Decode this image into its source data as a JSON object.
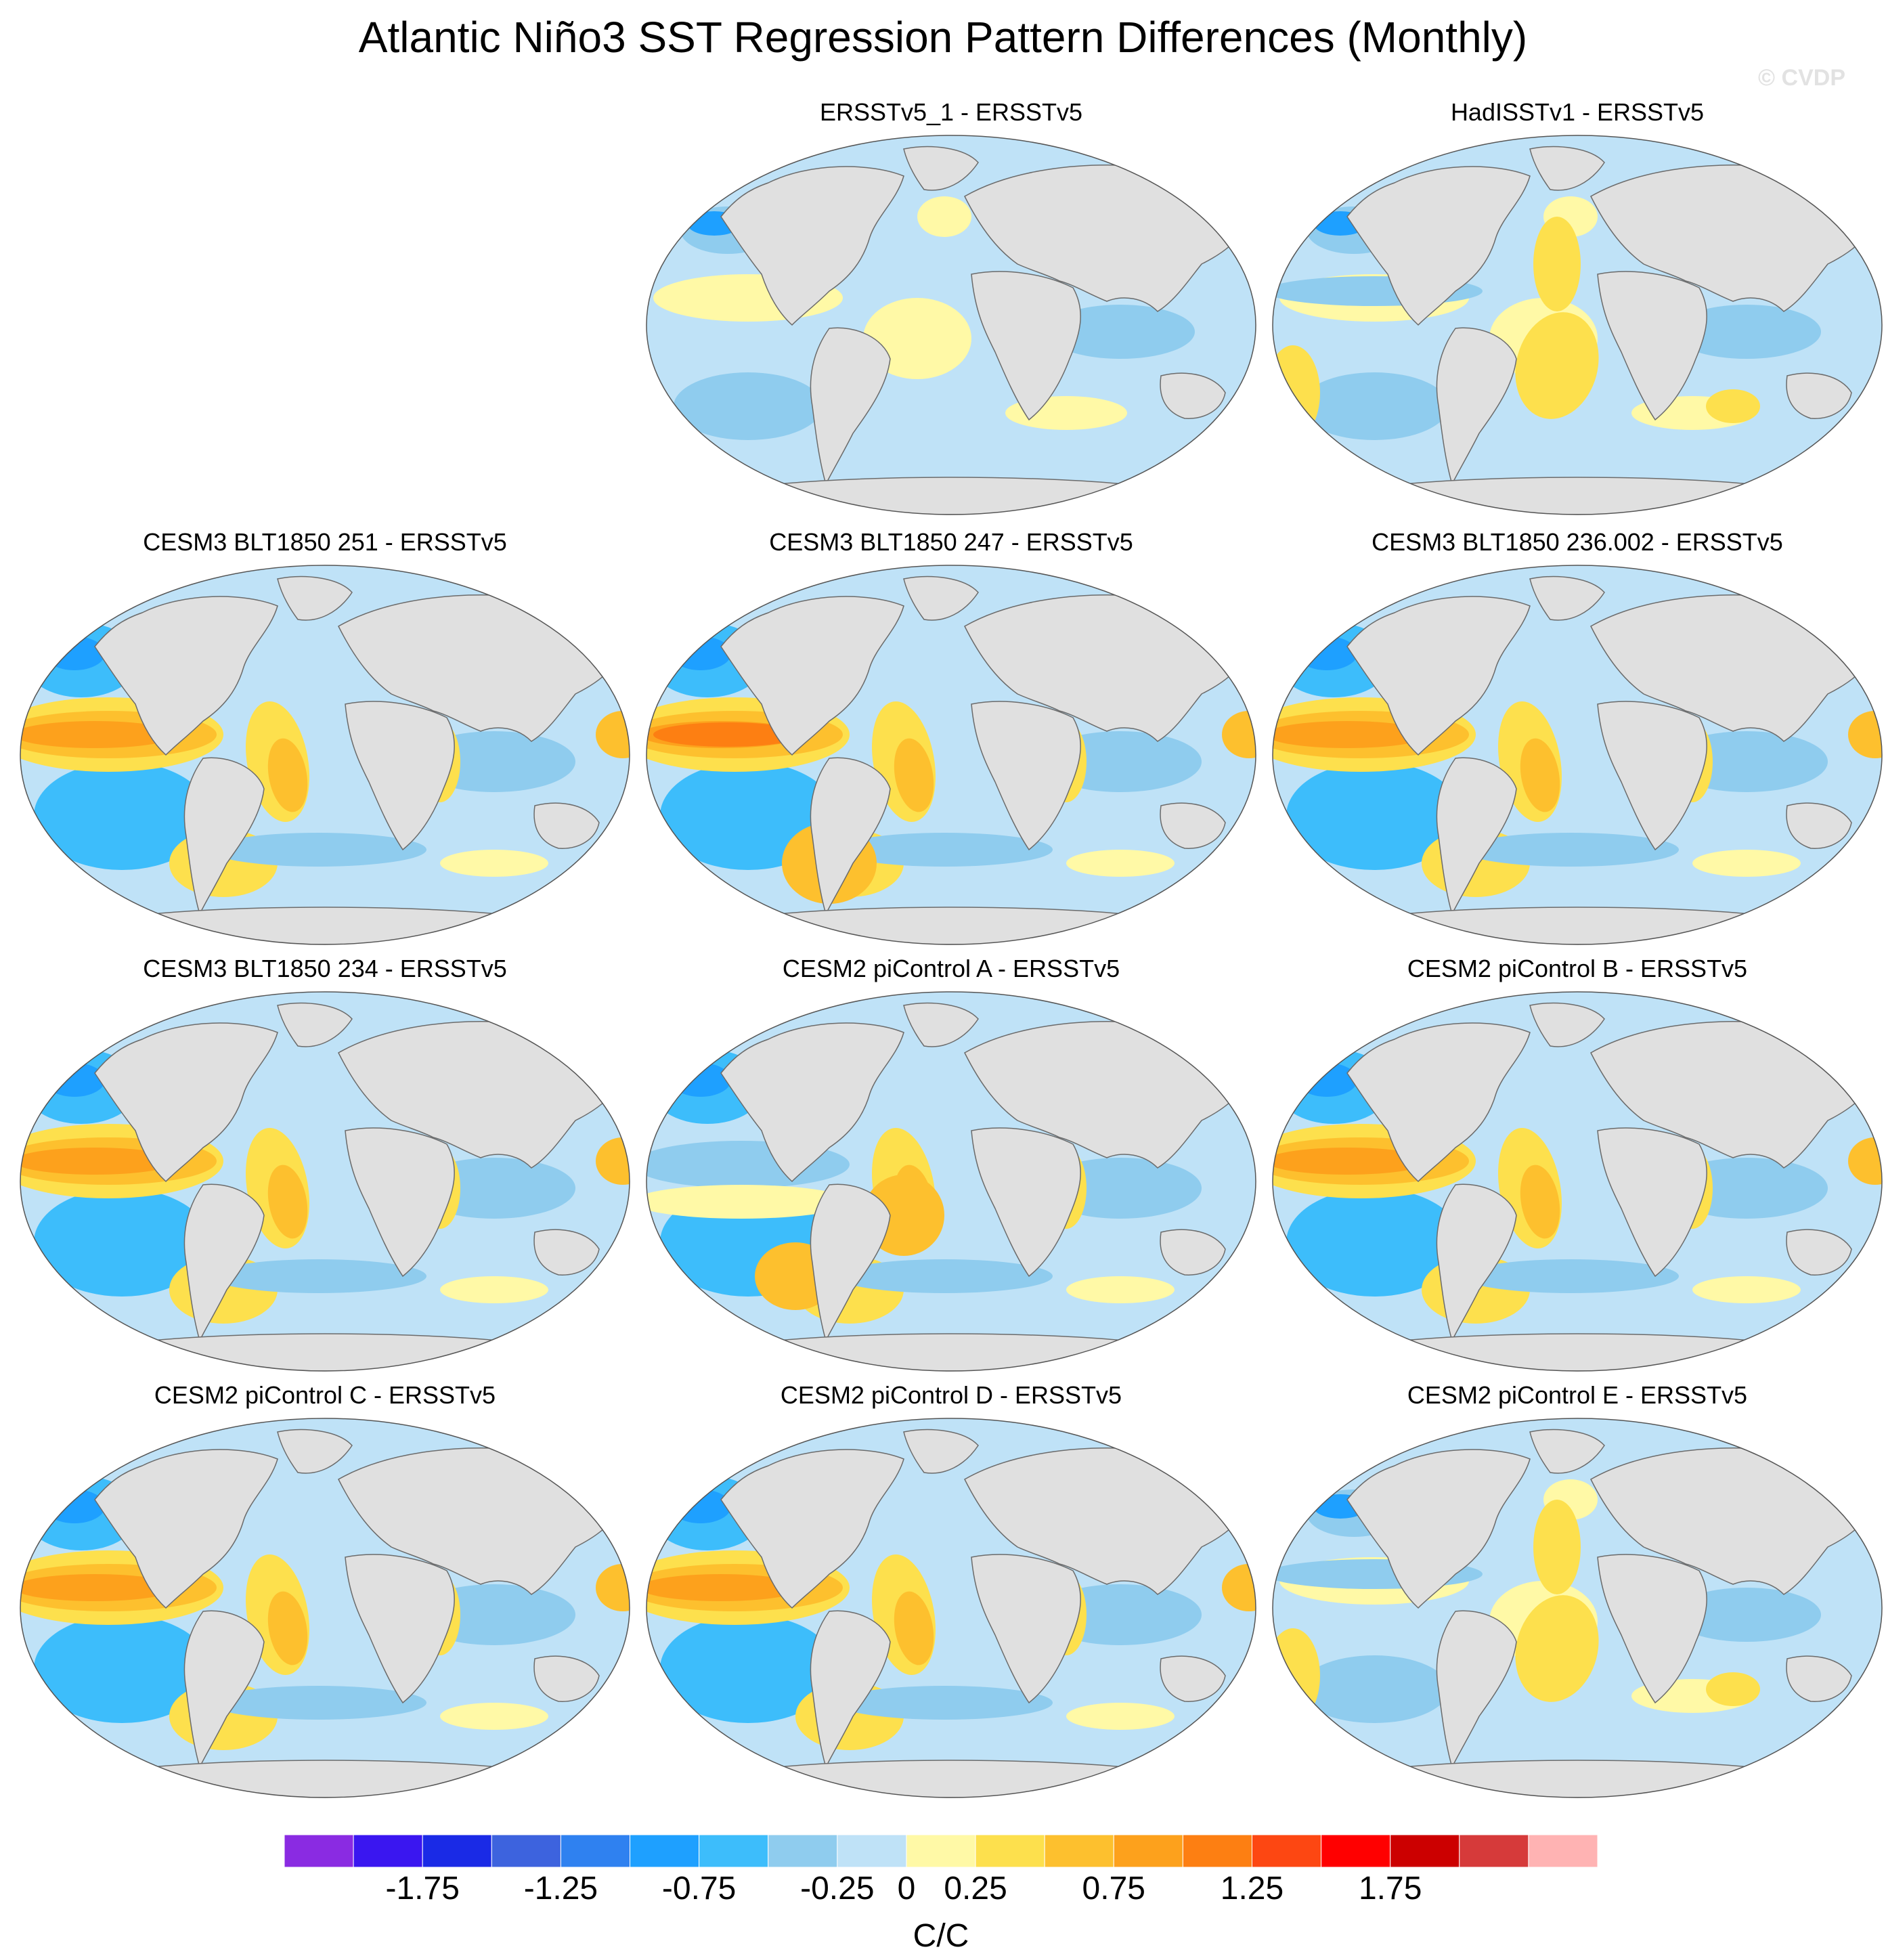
{
  "title": "Atlantic Niño3 SST Regression Pattern Differences (Monthly)",
  "watermark": "© CVDP",
  "panels": [
    {
      "title": "ERSSTv5_1 - ERSSTv5",
      "pattern": "weak"
    },
    {
      "title": "HadISSTv1 - ERSSTv5",
      "pattern": "weak_warm_atl"
    },
    {
      "title": "CESM3 BLT1850 251 - ERSSTv5",
      "pattern": "model_warm_pac"
    },
    {
      "title": "CESM3 BLT1850 247 - ERSSTv5",
      "pattern": "model_strong_pac"
    },
    {
      "title": "CESM3 BLT1850 236.002 - ERSSTv5",
      "pattern": "model_warm_pac"
    },
    {
      "title": "CESM3 BLT1850 234 - ERSSTv5",
      "pattern": "model_warm_pac"
    },
    {
      "title": "CESM2 piControl A - ERSSTv5",
      "pattern": "model_cold_pac"
    },
    {
      "title": "CESM2 piControl B - ERSSTv5",
      "pattern": "model_warm_pac"
    },
    {
      "title": "CESM2 piControl C - ERSSTv5",
      "pattern": "model_warm_pac"
    },
    {
      "title": "CESM2 piControl D - ERSSTv5",
      "pattern": "model_warm_pac"
    },
    {
      "title": "CESM2 piControl E - ERSSTv5",
      "pattern": "weak_warm_atl"
    }
  ],
  "colorbar": {
    "units": "C/C",
    "labels": [
      "-1.75",
      "-1.25",
      "-0.75",
      "-0.25",
      "0",
      "0.25",
      "0.75",
      "1.25",
      "1.75"
    ],
    "colors": [
      "#8a2be2",
      "#3a16f0",
      "#1a2ae6",
      "#3d63de",
      "#2f81f0",
      "#1ea0ff",
      "#3dbdfb",
      "#8fccee",
      "#bfe2f7",
      "#fff9a6",
      "#fde04d",
      "#fdc02e",
      "#fda11c",
      "#fd7f12",
      "#fd4712",
      "#ff0000",
      "#cc0000",
      "#d63a3a",
      "#ffb3b3"
    ]
  },
  "palette": {
    "land": "#e0e0e0",
    "coast": "#6b6b6b",
    "ocean_cool_light": "#bfe2f7",
    "ocean_cool": "#8fccee",
    "ocean_cooler": "#3dbdfb",
    "ocean_cold": "#1ea0ff",
    "ocean_warm_light": "#fff9a6",
    "ocean_warm": "#fde04d",
    "ocean_warmer": "#fdc02e",
    "ocean_hot": "#fda11c",
    "ocean_hotter": "#fd7f12"
  }
}
